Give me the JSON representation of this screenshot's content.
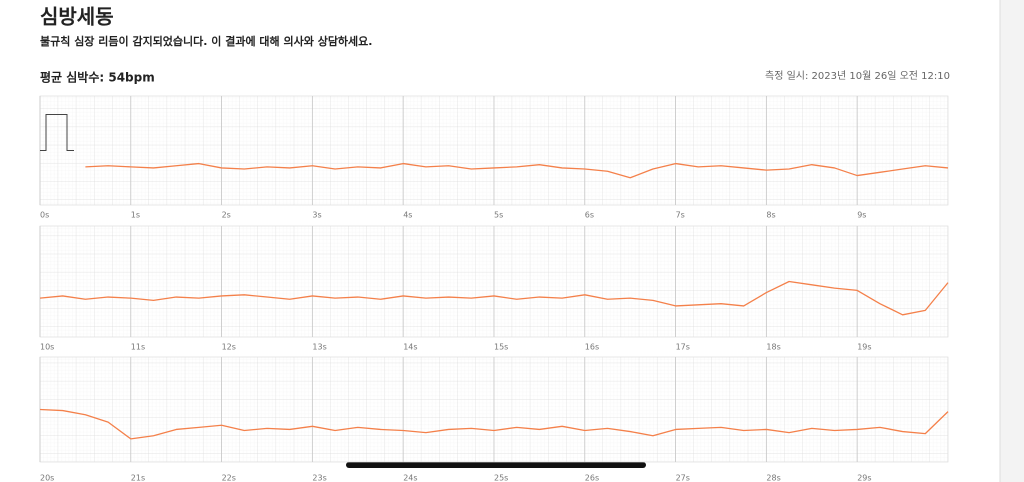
{
  "header": {
    "title": "심방세동",
    "subtitle": "불규칙 심장 리듬이 감지되었습니다. 이 결과에 대해 의사와 상담하세요."
  },
  "summary": {
    "average": "평균 심박수: 54bpm",
    "measured": "측정 일시: 2023년 10월 26일 오전 12:10"
  },
  "chart_data": [
    {
      "type": "line",
      "xlim": [
        0,
        10
      ],
      "ylim": [
        0,
        100
      ],
      "xticks": [
        {
          "value": 0,
          "label": "0s"
        },
        {
          "value": 1,
          "label": "1s"
        },
        {
          "value": 2,
          "label": "2s"
        },
        {
          "value": 3,
          "label": "3s"
        },
        {
          "value": 4,
          "label": "4s"
        },
        {
          "value": 5,
          "label": "5s"
        },
        {
          "value": 6,
          "label": "6s"
        },
        {
          "value": 7,
          "label": "7s"
        },
        {
          "value": 8,
          "label": "8s"
        },
        {
          "value": 9,
          "label": "9s"
        }
      ],
      "x": [
        0.5,
        0.75,
        1,
        1.25,
        1.5,
        1.75,
        2,
        2.25,
        2.5,
        2.75,
        3,
        3.25,
        3.5,
        3.75,
        4,
        4.25,
        4.5,
        4.75,
        5,
        5.25,
        5.5,
        5.75,
        6,
        6.25,
        6.5,
        6.75,
        7,
        7.25,
        7.5,
        7.75,
        8,
        8.25,
        8.5,
        8.75,
        9,
        9.25,
        9.5,
        9.75,
        10
      ],
      "series": [
        {
          "color": "#f4804a",
          "values": [
            35,
            36,
            35,
            34,
            36,
            38,
            34,
            33,
            35,
            34,
            36,
            33,
            35,
            34,
            38,
            35,
            36,
            33,
            34,
            35,
            37,
            34,
            33,
            31,
            25,
            33,
            38,
            35,
            36,
            34,
            32,
            33,
            37,
            34,
            27,
            30,
            33,
            36,
            34
          ]
        }
      ]
    },
    {
      "type": "line",
      "xlim": [
        10,
        20
      ],
      "ylim": [
        0,
        100
      ],
      "xticks": [
        {
          "value": 10,
          "label": "10s"
        },
        {
          "value": 11,
          "label": "11s"
        },
        {
          "value": 12,
          "label": "12s"
        },
        {
          "value": 13,
          "label": "13s"
        },
        {
          "value": 14,
          "label": "14s"
        },
        {
          "value": 15,
          "label": "15s"
        },
        {
          "value": 16,
          "label": "16s"
        },
        {
          "value": 17,
          "label": "17s"
        },
        {
          "value": 18,
          "label": "18s"
        },
        {
          "value": 19,
          "label": "19s"
        }
      ],
      "x": [
        10,
        10.25,
        10.5,
        10.75,
        11,
        11.25,
        11.5,
        11.75,
        12,
        12.25,
        12.5,
        12.75,
        13,
        13.25,
        13.5,
        13.75,
        14,
        14.25,
        14.5,
        14.75,
        15,
        15.25,
        15.5,
        15.75,
        16,
        16.25,
        16.5,
        16.75,
        17,
        17.25,
        17.5,
        17.75,
        18,
        18.25,
        18.5,
        18.75,
        19,
        19.25,
        19.5,
        19.75,
        20
      ],
      "series": [
        {
          "color": "#f4804a",
          "values": [
            35,
            37,
            34,
            36,
            35,
            33,
            36,
            35,
            37,
            38,
            36,
            34,
            37,
            35,
            36,
            34,
            37,
            35,
            36,
            35,
            37,
            34,
            36,
            35,
            38,
            34,
            35,
            33,
            28,
            29,
            30,
            28,
            40,
            50,
            47,
            44,
            42,
            30,
            20,
            24,
            49
          ]
        }
      ]
    },
    {
      "type": "line",
      "xlim": [
        20,
        30
      ],
      "ylim": [
        0,
        100
      ],
      "xticks": [
        {
          "value": 20,
          "label": "20s"
        },
        {
          "value": 21,
          "label": "21s"
        },
        {
          "value": 22,
          "label": "22s"
        },
        {
          "value": 23,
          "label": "23s"
        },
        {
          "value": 24,
          "label": "24s"
        },
        {
          "value": 25,
          "label": "25s"
        },
        {
          "value": 26,
          "label": "26s"
        },
        {
          "value": 27,
          "label": "27s"
        },
        {
          "value": 28,
          "label": "28s"
        },
        {
          "value": 29,
          "label": "29s"
        }
      ],
      "x": [
        20,
        20.25,
        20.5,
        20.75,
        21,
        21.25,
        21.5,
        21.75,
        22,
        22.25,
        22.5,
        22.75,
        23,
        23.25,
        23.5,
        23.75,
        24,
        24.25,
        24.5,
        24.75,
        25,
        25.25,
        25.5,
        25.75,
        26,
        26.25,
        26.5,
        26.75,
        27,
        27.25,
        27.5,
        27.75,
        28,
        28.25,
        28.5,
        28.75,
        29,
        29.25,
        29.5,
        29.75,
        30
      ],
      "series": [
        {
          "color": "#f4804a",
          "values": [
            50,
            49,
            45,
            38,
            22,
            25,
            31,
            33,
            35,
            30,
            32,
            31,
            34,
            30,
            33,
            31,
            30,
            28,
            31,
            32,
            30,
            33,
            31,
            34,
            30,
            32,
            29,
            25,
            31,
            32,
            33,
            30,
            31,
            28,
            32,
            30,
            31,
            33,
            29,
            27,
            48
          ]
        }
      ]
    }
  ]
}
